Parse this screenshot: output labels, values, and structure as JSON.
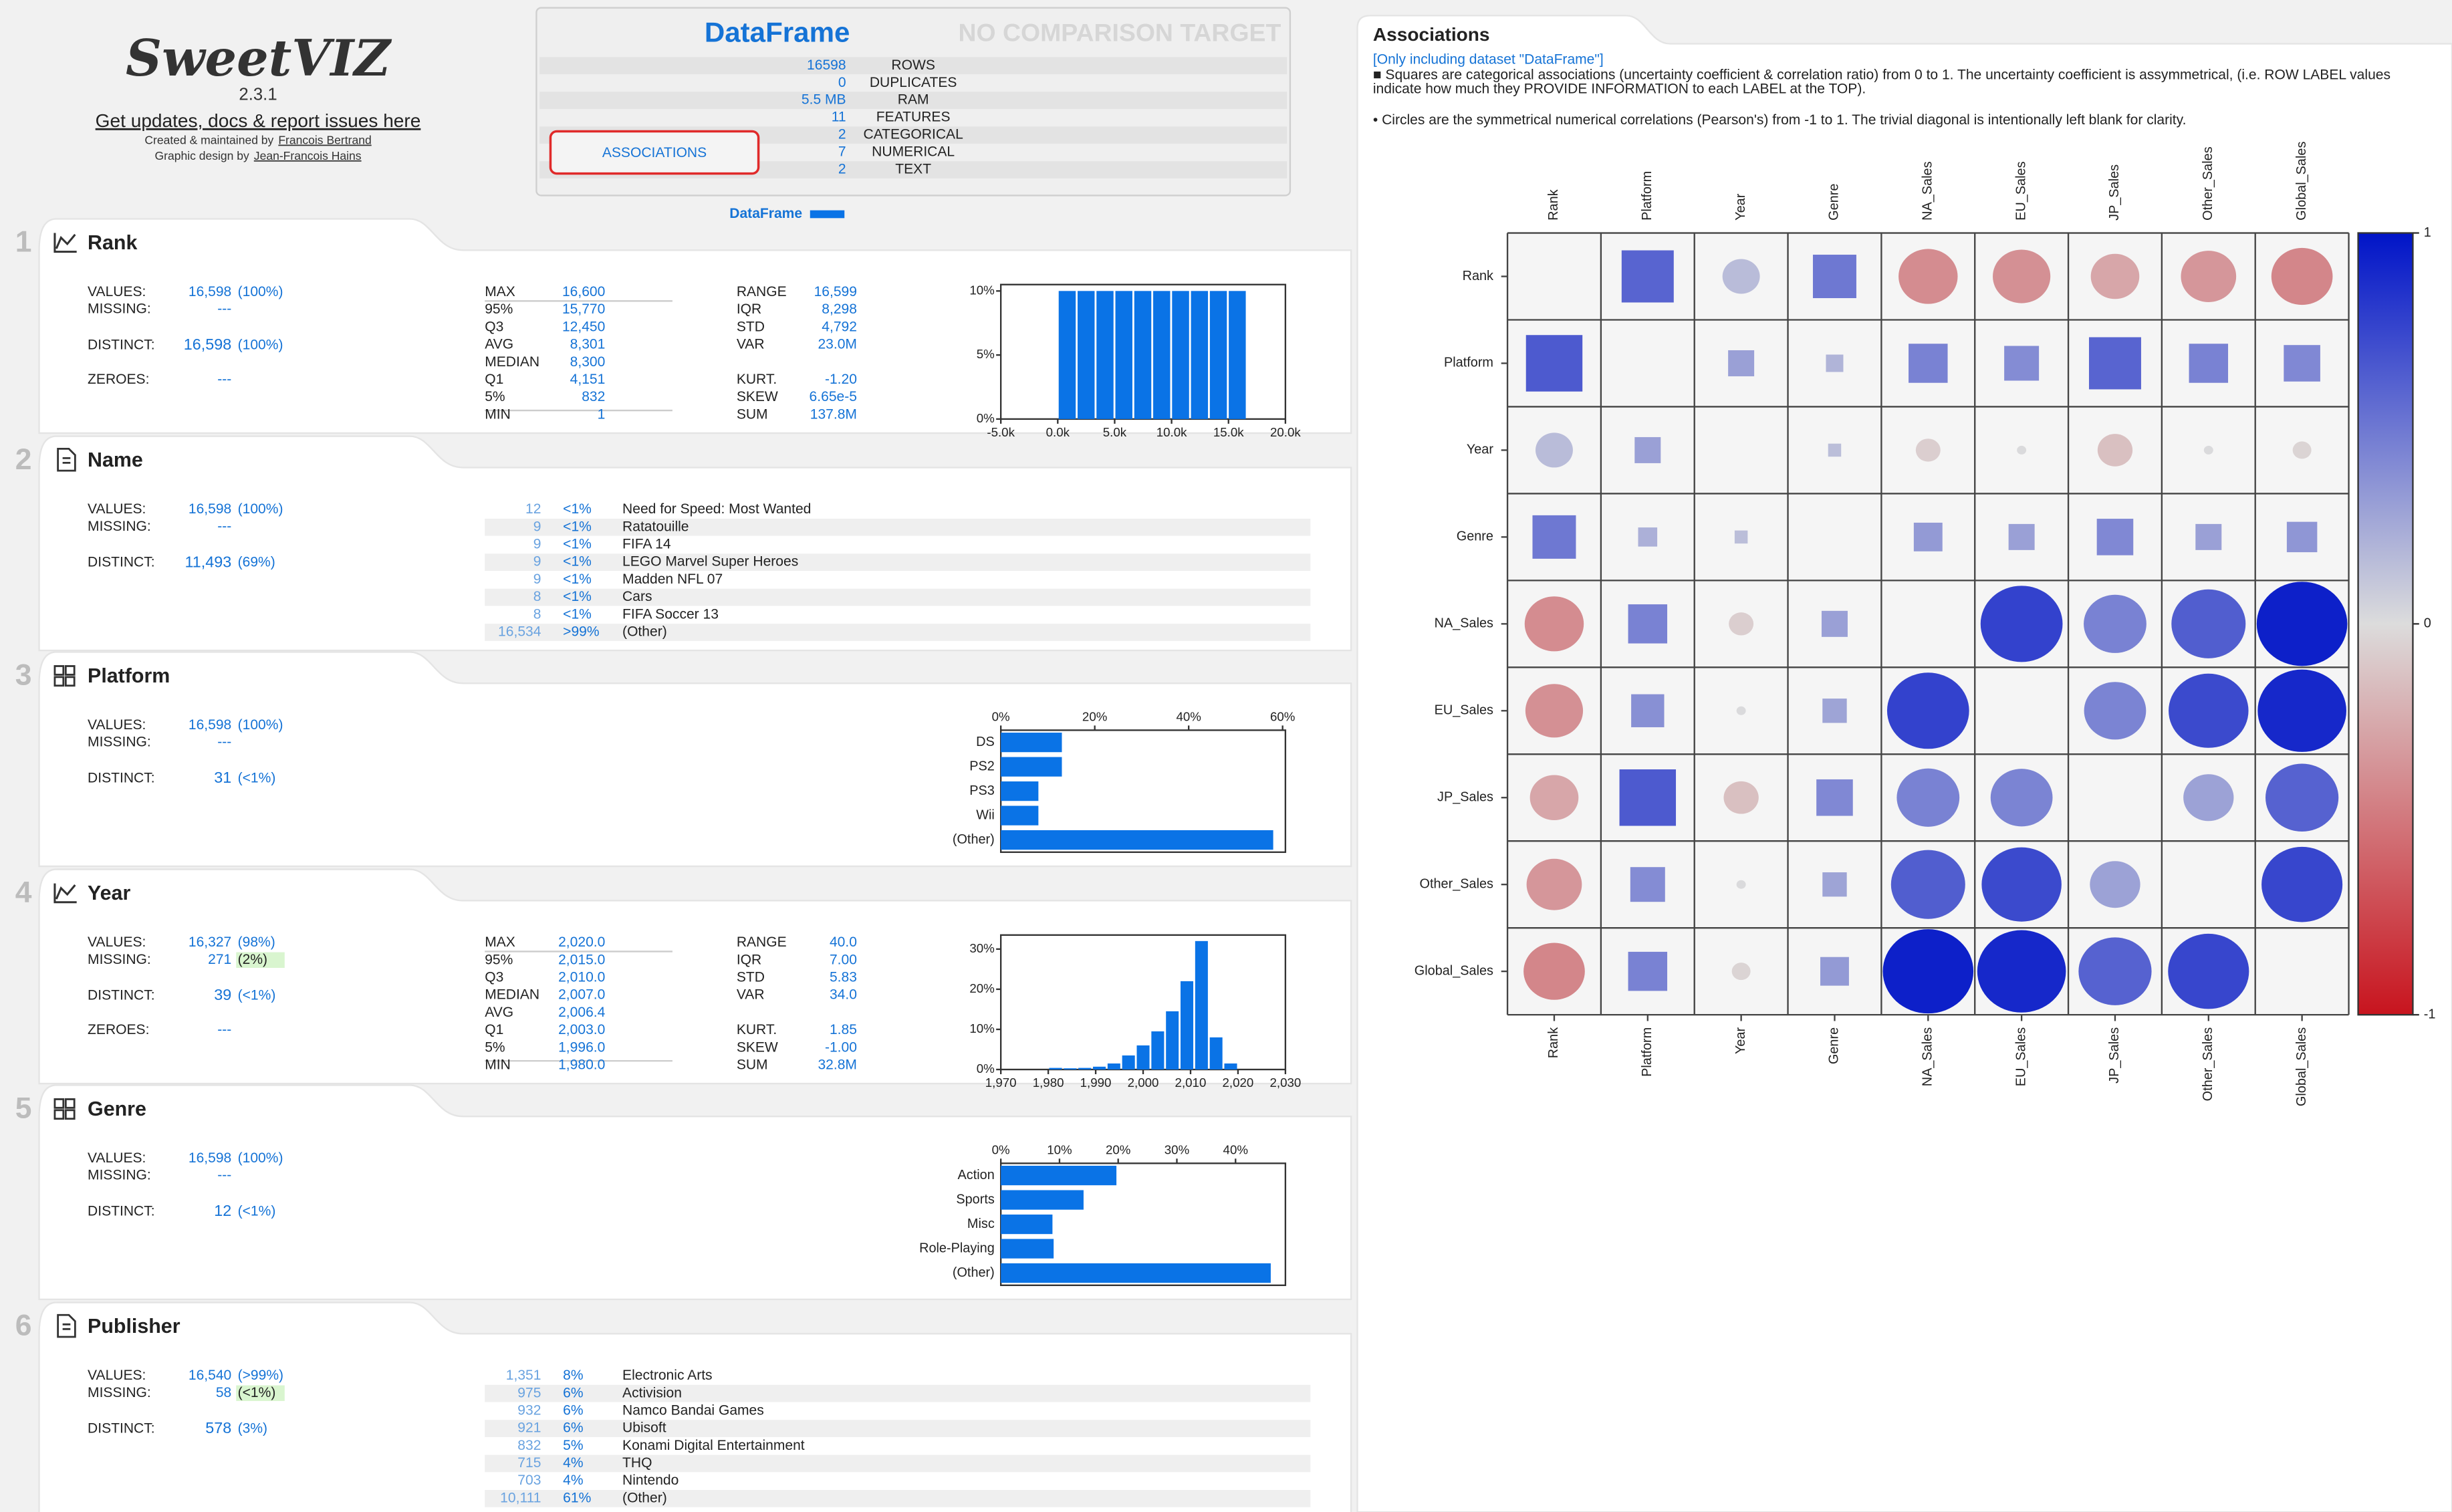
{
  "header": {
    "logo": "SweetVIZ",
    "version": "2.3.1",
    "link": "Get updates, docs & report issues here",
    "credit_prefix": "Created & maintained by",
    "credit_name": "Francois Bertrand",
    "design_prefix": "Graphic design by",
    "design_name": "Jean-Francois Hains"
  },
  "summary": {
    "title": "DataFrame",
    "compare": "NO COMPARISON TARGET",
    "rows": [
      [
        "16598",
        "ROWS"
      ],
      [
        "0",
        "DUPLICATES"
      ],
      [
        "5.5 MB",
        "RAM"
      ],
      [
        "11",
        "FEATURES"
      ],
      [
        "2",
        "CATEGORICAL"
      ],
      [
        "7",
        "NUMERICAL"
      ],
      [
        "2",
        "TEXT"
      ]
    ],
    "button": "ASSOCIATIONS",
    "legend": "DataFrame",
    "color": "#0a73e6"
  },
  "features": [
    {
      "number": "1",
      "name": "Rank",
      "kind": "numerical",
      "stats": [
        [
          "VALUES:",
          "16,598",
          "(100%)"
        ],
        [
          "MISSING:",
          "---"
        ],
        [
          "DISTINCT:",
          "16,598",
          "(100%)"
        ],
        [
          "ZEROES:",
          "---"
        ]
      ],
      "quantiles": [
        [
          "MAX",
          "16,600"
        ],
        [
          "95%",
          "15,770"
        ],
        [
          "Q3",
          "12,450"
        ],
        [
          "AVG",
          "8,301"
        ],
        [
          "MEDIAN",
          "8,300"
        ],
        [
          "Q1",
          "4,151"
        ],
        [
          "5%",
          "832"
        ],
        [
          "MIN",
          "1"
        ]
      ],
      "moments": [
        [
          "RANGE",
          "16,599"
        ],
        [
          "IQR",
          "8,298"
        ],
        [
          "STD",
          "4,792"
        ],
        [
          "VAR",
          "23.0M"
        ],
        [
          "KURT.",
          "-1.20"
        ],
        [
          "SKEW",
          "6.65e-5"
        ],
        [
          "SUM",
          "137.8M"
        ]
      ],
      "chart": {
        "type": "histogram",
        "bins": [
          1,
          1661,
          3321,
          4981,
          6640,
          8300,
          9960,
          11620,
          13280,
          14940,
          16600
        ],
        "values": [
          10,
          10,
          10,
          10,
          10,
          10,
          10,
          10,
          10,
          10
        ],
        "xlim": [
          -5000,
          20000
        ],
        "xticks": [
          {
            "value": -5000,
            "label": "-5.0k"
          },
          {
            "value": 0,
            "label": "0.0k"
          },
          {
            "value": 5000,
            "label": "5.0k"
          },
          {
            "value": 10000,
            "label": "10.0k"
          },
          {
            "value": 15000,
            "label": "15.0k"
          },
          {
            "value": 20000,
            "label": "20.0k"
          }
        ],
        "ylim": [
          0,
          10.5
        ],
        "yticks": [
          {
            "value": 0,
            "label": "0%"
          },
          {
            "value": 5,
            "label": "5%"
          },
          {
            "value": 10,
            "label": "10%"
          }
        ],
        "color": "#0a73e6"
      }
    },
    {
      "number": "2",
      "name": "Name",
      "kind": "text",
      "stats": [
        [
          "VALUES:",
          "16,598",
          "(100%)"
        ],
        [
          "MISSING:",
          "---"
        ],
        [
          "DISTINCT:",
          "11,493",
          "(69%)"
        ]
      ],
      "table": [
        [
          "12",
          "<1%",
          "Need for Speed: Most Wanted"
        ],
        [
          "9",
          "<1%",
          "Ratatouille"
        ],
        [
          "9",
          "<1%",
          "FIFA 14"
        ],
        [
          "9",
          "<1%",
          "LEGO Marvel Super Heroes"
        ],
        [
          "9",
          "<1%",
          "Madden NFL 07"
        ],
        [
          "8",
          "<1%",
          "Cars"
        ],
        [
          "8",
          "<1%",
          "FIFA Soccer 13"
        ],
        [
          "16,534",
          ">99%",
          "(Other)"
        ]
      ]
    },
    {
      "number": "3",
      "name": "Platform",
      "kind": "categorical",
      "stats": [
        [
          "VALUES:",
          "16,598",
          "(100%)"
        ],
        [
          "MISSING:",
          "---"
        ],
        [
          "DISTINCT:",
          "31",
          "(<1%)"
        ]
      ],
      "chart": {
        "type": "bar",
        "categories": [
          "DS",
          "PS2",
          "PS3",
          "Wii",
          "(Other)"
        ],
        "values": [
          13,
          13,
          8,
          8,
          58
        ],
        "xlim": [
          0,
          60.6
        ],
        "xticks": [
          {
            "value": 0,
            "label": "0%"
          },
          {
            "value": 20,
            "label": "20%"
          },
          {
            "value": 40,
            "label": "40%"
          },
          {
            "value": 60,
            "label": "60%"
          }
        ],
        "color": "#0a73e6"
      }
    },
    {
      "number": "4",
      "name": "Year",
      "kind": "numerical",
      "missing_warning": true,
      "stats": [
        [
          "VALUES:",
          "16,327",
          "(98%)"
        ],
        [
          "MISSING:",
          "271",
          "(2%)"
        ],
        [
          "DISTINCT:",
          "39",
          "(<1%)"
        ],
        [
          "ZEROES:",
          "---"
        ]
      ],
      "quantiles": [
        [
          "MAX",
          "2,020.0"
        ],
        [
          "95%",
          "2,015.0"
        ],
        [
          "Q3",
          "2,010.0"
        ],
        [
          "MEDIAN",
          "2,007.0"
        ],
        [
          "AVG",
          "2,006.4"
        ],
        [
          "Q1",
          "2,003.0"
        ],
        [
          "5%",
          "1,996.0"
        ],
        [
          "MIN",
          "1,980.0"
        ]
      ],
      "moments": [
        [
          "RANGE",
          "40.0"
        ],
        [
          "IQR",
          "7.00"
        ],
        [
          "STD",
          "5.83"
        ],
        [
          "VAR",
          "34.0"
        ],
        [
          "KURT.",
          "1.85"
        ],
        [
          "SKEW",
          "-1.00"
        ],
        [
          "SUM",
          "32.8M"
        ]
      ],
      "chart": {
        "type": "histogram",
        "bins": [
          1980,
          1983.08,
          1986.15,
          1989.23,
          1992.31,
          1995.38,
          1998.46,
          2001.54,
          2004.62,
          2007.69,
          2010.77,
          2013.85,
          2016.92,
          2020
        ],
        "values": [
          0.4,
          0.3,
          0.4,
          0.7,
          1.5,
          3.5,
          6,
          9.5,
          14.5,
          22,
          32,
          8,
          1.5
        ],
        "xlim": [
          1970,
          2030
        ],
        "xticks": [
          {
            "value": 1970,
            "label": "1,970"
          },
          {
            "value": 1980,
            "label": "1,980"
          },
          {
            "value": 1990,
            "label": "1,990"
          },
          {
            "value": 2000,
            "label": "2,000"
          },
          {
            "value": 2010,
            "label": "2,010"
          },
          {
            "value": 2020,
            "label": "2,020"
          },
          {
            "value": 2030,
            "label": "2,030"
          }
        ],
        "ylim": [
          0,
          33.5
        ],
        "yticks": [
          {
            "value": 0,
            "label": "0%"
          },
          {
            "value": 10,
            "label": "10%"
          },
          {
            "value": 20,
            "label": "20%"
          },
          {
            "value": 30,
            "label": "30%"
          }
        ],
        "color": "#0a73e6"
      }
    },
    {
      "number": "5",
      "name": "Genre",
      "kind": "categorical",
      "stats": [
        [
          "VALUES:",
          "16,598",
          "(100%)"
        ],
        [
          "MISSING:",
          "---"
        ],
        [
          "DISTINCT:",
          "12",
          "(<1%)"
        ]
      ],
      "chart": {
        "type": "bar",
        "categories": [
          "Action",
          "Sports",
          "Misc",
          "Role-Playing",
          "(Other)"
        ],
        "values": [
          19.7,
          14.1,
          8.8,
          9,
          46
        ],
        "xlim": [
          0,
          48.5
        ],
        "xticks": [
          {
            "value": 0,
            "label": "0%"
          },
          {
            "value": 10,
            "label": "10%"
          },
          {
            "value": 20,
            "label": "20%"
          },
          {
            "value": 30,
            "label": "30%"
          },
          {
            "value": 40,
            "label": "40%"
          }
        ],
        "color": "#0a73e6"
      }
    },
    {
      "number": "6",
      "name": "Publisher",
      "kind": "text",
      "missing_warning": true,
      "stats": [
        [
          "VALUES:",
          "16,540",
          "(>99%)"
        ],
        [
          "MISSING:",
          "58",
          "(<1%)"
        ],
        [
          "DISTINCT:",
          "578",
          "(3%)"
        ]
      ],
      "table": [
        [
          "1,351",
          "8%",
          "Electronic Arts"
        ],
        [
          "975",
          "6%",
          "Activision"
        ],
        [
          "932",
          "6%",
          "Namco Bandai Games"
        ],
        [
          "921",
          "6%",
          "Ubisoft"
        ],
        [
          "832",
          "5%",
          "Konami Digital Entertainment"
        ],
        [
          "715",
          "4%",
          "THQ"
        ],
        [
          "703",
          "4%",
          "Nintendo"
        ],
        [
          "10,111",
          "61%",
          "(Other)"
        ]
      ]
    }
  ],
  "associations": {
    "title": "Associations",
    "subtitle": "[Only including dataset \"DataFrame\"]",
    "note_squares": "■ Squares are categorical associations (uncertainty coefficient & correlation ratio) from 0 to 1. The uncertainty coefficient is assymmetrical, (i.e. ROW LABEL values indicate how much they PROVIDE INFORMATION to each LABEL at the TOP).",
    "note_circles": "• Circles are the symmetrical numerical correlations (Pearson's) from -1 to 1. The trivial diagonal is intentionally left blank for clarity.",
    "labels": [
      "Rank",
      "Platform",
      "Year",
      "Genre",
      "NA_Sales",
      "EU_Sales",
      "JP_Sales",
      "Other_Sales",
      "Global_Sales"
    ],
    "values": [
      [
        null,
        0.6,
        0.16,
        0.5,
        -0.4,
        -0.38,
        -0.27,
        -0.35,
        -0.43
      ],
      [
        0.65,
        null,
        0.3,
        0.2,
        0.45,
        0.4,
        0.6,
        0.45,
        0.42
      ],
      [
        0.16,
        0.3,
        null,
        0.15,
        -0.07,
        0.01,
        -0.14,
        0.01,
        -0.04
      ],
      [
        0.5,
        0.22,
        0.15,
        null,
        0.33,
        0.3,
        0.42,
        0.3,
        0.35
      ],
      [
        -0.4,
        0.45,
        -0.07,
        0.3,
        null,
        0.77,
        0.45,
        0.63,
        0.94
      ],
      [
        -0.38,
        0.38,
        0.01,
        0.28,
        0.77,
        null,
        0.44,
        0.73,
        0.9
      ],
      [
        -0.27,
        0.65,
        -0.14,
        0.42,
        0.45,
        0.44,
        null,
        0.29,
        0.61
      ],
      [
        -0.35,
        0.4,
        0.01,
        0.28,
        0.63,
        0.73,
        0.29,
        null,
        0.75
      ],
      [
        -0.43,
        0.45,
        -0.04,
        0.33,
        0.94,
        0.9,
        0.61,
        0.75,
        null
      ]
    ],
    "clim": [
      -1,
      1
    ],
    "cticks": [
      1,
      0,
      -1
    ],
    "colors": {
      "negative": "#c8141e",
      "neutral": "#dcdcdc",
      "positive": "#0014c8"
    }
  }
}
